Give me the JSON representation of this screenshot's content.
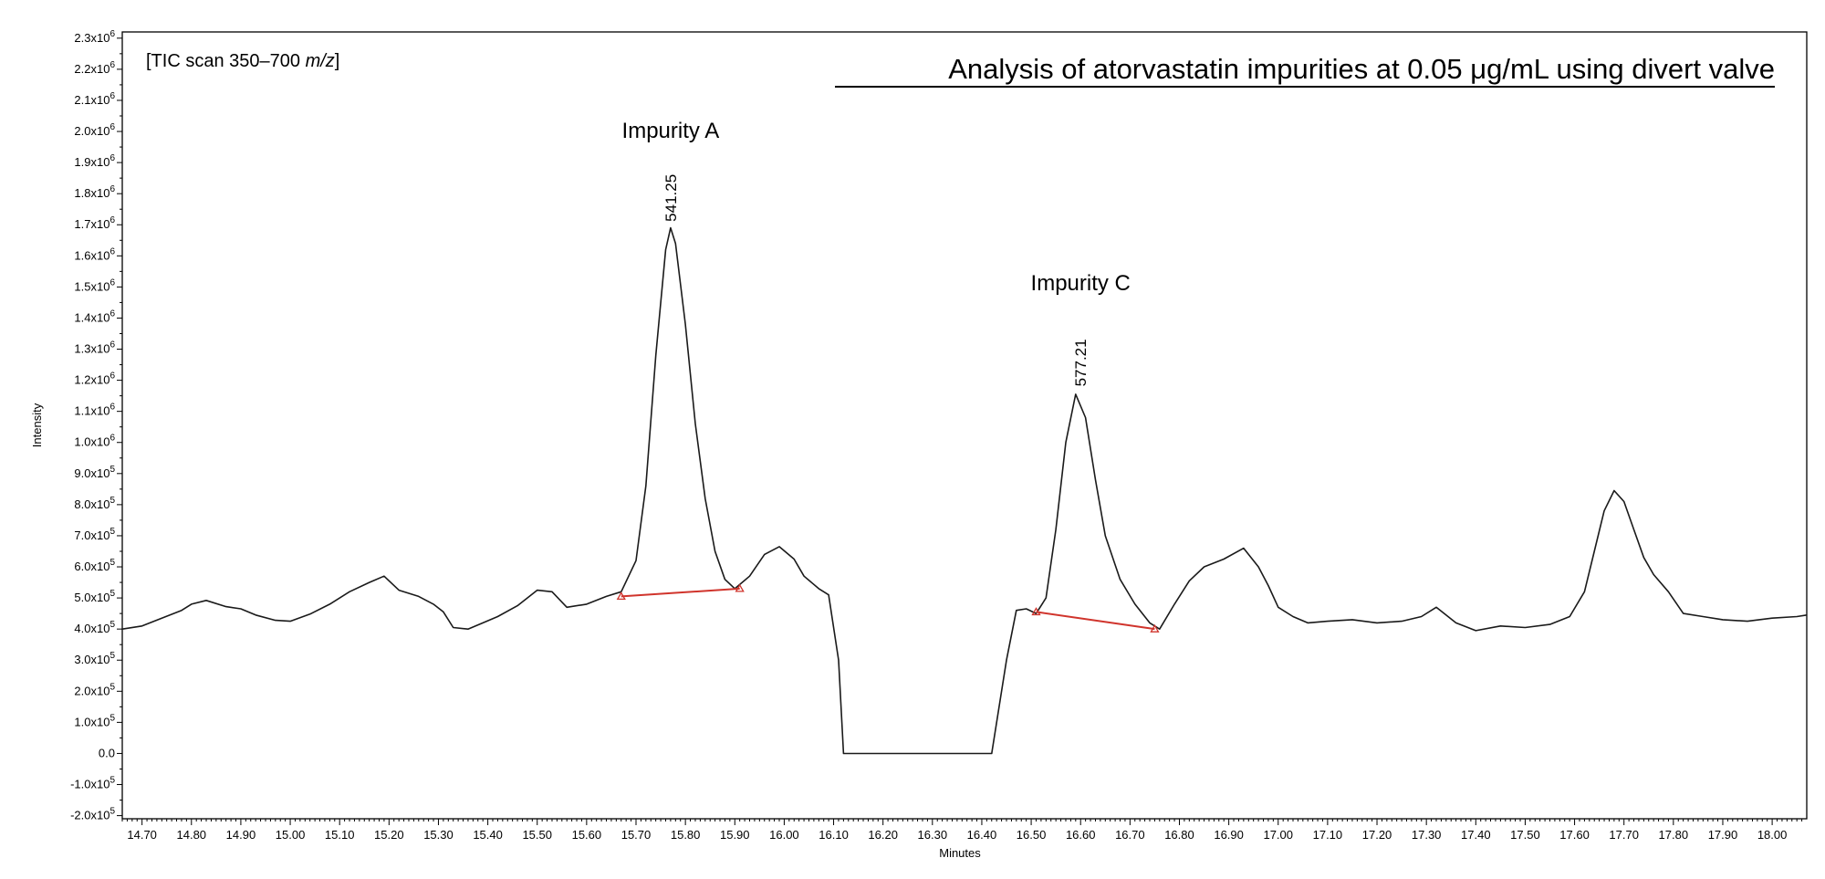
{
  "chart_data": {
    "type": "line",
    "title": "Analysis of atorvastatin impurities at 0.05 μg/mL using divert valve",
    "scan_label": "[TIC scan 350–700 ",
    "scan_label_italic": "m/z",
    "scan_label_end": "]",
    "xlabel": "Minutes",
    "ylabel": "Intensity",
    "xlim": [
      14.66,
      18.07
    ],
    "ylim": [
      -210000,
      2320000
    ],
    "x_ticks": [
      14.7,
      14.8,
      14.9,
      15.0,
      15.1,
      15.2,
      15.3,
      15.4,
      15.5,
      15.6,
      15.7,
      15.8,
      15.9,
      16.0,
      16.1,
      16.2,
      16.3,
      16.4,
      16.5,
      16.6,
      16.7,
      16.8,
      16.9,
      17.0,
      17.1,
      17.2,
      17.3,
      17.4,
      17.5,
      17.6,
      17.7,
      17.8,
      17.9,
      18.0
    ],
    "x_tick_labels": [
      "14.70",
      "14.80",
      "14.90",
      "15.00",
      "15.10",
      "15.20",
      "15.30",
      "15.40",
      "15.50",
      "15.60",
      "15.70",
      "15.80",
      "15.90",
      "16.00",
      "16.10",
      "16.20",
      "16.30",
      "16.40",
      "16.50",
      "16.60",
      "16.70",
      "16.80",
      "16.90",
      "17.00",
      "17.10",
      "17.20",
      "17.30",
      "17.40",
      "17.50",
      "17.60",
      "17.70",
      "17.80",
      "17.90",
      "18.00"
    ],
    "y_ticks": [
      {
        "value": 2300000,
        "mant": "2.3x10",
        "exp": "6"
      },
      {
        "value": 2200000,
        "mant": "2.2x10",
        "exp": "6"
      },
      {
        "value": 2100000,
        "mant": "2.1x10",
        "exp": "6"
      },
      {
        "value": 2000000,
        "mant": "2.0x10",
        "exp": "6"
      },
      {
        "value": 1900000,
        "mant": "1.9x10",
        "exp": "6"
      },
      {
        "value": 1800000,
        "mant": "1.8x10",
        "exp": "6"
      },
      {
        "value": 1700000,
        "mant": "1.7x10",
        "exp": "6"
      },
      {
        "value": 1600000,
        "mant": "1.6x10",
        "exp": "6"
      },
      {
        "value": 1500000,
        "mant": "1.5x10",
        "exp": "6"
      },
      {
        "value": 1400000,
        "mant": "1.4x10",
        "exp": "6"
      },
      {
        "value": 1300000,
        "mant": "1.3x10",
        "exp": "6"
      },
      {
        "value": 1200000,
        "mant": "1.2x10",
        "exp": "6"
      },
      {
        "value": 1100000,
        "mant": "1.1x10",
        "exp": "6"
      },
      {
        "value": 1000000,
        "mant": "1.0x10",
        "exp": "6"
      },
      {
        "value": 900000,
        "mant": "9.0x10",
        "exp": "5"
      },
      {
        "value": 800000,
        "mant": "8.0x10",
        "exp": "5"
      },
      {
        "value": 700000,
        "mant": "7.0x10",
        "exp": "5"
      },
      {
        "value": 600000,
        "mant": "6.0x10",
        "exp": "5"
      },
      {
        "value": 500000,
        "mant": "5.0x10",
        "exp": "5"
      },
      {
        "value": 400000,
        "mant": "4.0x10",
        "exp": "5"
      },
      {
        "value": 300000,
        "mant": "3.0x10",
        "exp": "5"
      },
      {
        "value": 200000,
        "mant": "2.0x10",
        "exp": "5"
      },
      {
        "value": 100000,
        "mant": "1.0x10",
        "exp": "5"
      },
      {
        "value": 0,
        "mant": "0.0",
        "exp": ""
      },
      {
        "value": -100000,
        "mant": "-1.0x10",
        "exp": "5"
      },
      {
        "value": -200000,
        "mant": "-2.0x10",
        "exp": "5"
      }
    ],
    "series": [
      {
        "color": "#1a1a1a",
        "x": [
          14.66,
          14.7,
          14.74,
          14.78,
          14.8,
          14.83,
          14.87,
          14.9,
          14.93,
          14.97,
          15.0,
          15.04,
          15.08,
          15.12,
          15.16,
          15.19,
          15.22,
          15.26,
          15.29,
          15.31,
          15.33,
          15.36,
          15.39,
          15.42,
          15.46,
          15.5,
          15.53,
          15.56,
          15.6,
          15.64,
          15.67,
          15.7,
          15.72,
          15.74,
          15.76,
          15.77,
          15.78,
          15.8,
          15.82,
          15.84,
          15.86,
          15.88,
          15.9,
          15.93,
          15.96,
          15.99,
          16.02,
          16.04,
          16.07,
          16.09,
          16.11,
          16.12,
          16.42,
          16.45,
          16.47,
          16.49,
          16.51,
          16.53,
          16.55,
          16.57,
          16.59,
          16.61,
          16.63,
          16.65,
          16.68,
          16.71,
          16.74,
          16.76,
          16.79,
          16.82,
          16.85,
          16.89,
          16.93,
          16.96,
          16.98,
          17.0,
          17.03,
          17.06,
          17.1,
          17.15,
          17.2,
          17.25,
          17.29,
          17.32,
          17.36,
          17.4,
          17.45,
          17.5,
          17.55,
          17.59,
          17.62,
          17.64,
          17.66,
          17.68,
          17.7,
          17.72,
          17.74,
          17.76,
          17.79,
          17.82,
          17.86,
          17.9,
          17.95,
          18.0,
          18.05,
          18.07
        ],
        "values": [
          400000,
          410000,
          435000,
          460000,
          480000,
          492000,
          472000,
          465000,
          445000,
          428000,
          425000,
          448000,
          480000,
          520000,
          550000,
          570000,
          525000,
          505000,
          480000,
          455000,
          405000,
          400000,
          420000,
          440000,
          475000,
          525000,
          520000,
          470000,
          480000,
          505000,
          520000,
          620000,
          860000,
          1280000,
          1620000,
          1690000,
          1640000,
          1380000,
          1060000,
          820000,
          650000,
          560000,
          530000,
          570000,
          640000,
          665000,
          625000,
          570000,
          530000,
          510000,
          300000,
          0,
          0,
          300000,
          460000,
          465000,
          450000,
          500000,
          720000,
          1000000,
          1155000,
          1080000,
          880000,
          700000,
          560000,
          480000,
          420000,
          400000,
          480000,
          555000,
          600000,
          625000,
          660000,
          600000,
          540000,
          470000,
          440000,
          420000,
          425000,
          430000,
          420000,
          425000,
          440000,
          470000,
          420000,
          395000,
          410000,
          405000,
          415000,
          440000,
          520000,
          650000,
          780000,
          845000,
          810000,
          720000,
          630000,
          575000,
          520000,
          450000,
          440000,
          430000,
          425000,
          435000,
          440000,
          445000
        ]
      }
    ],
    "baselines": [
      {
        "color": "#d0342c",
        "x": [
          15.67,
          15.91
        ],
        "values": [
          505000,
          530000
        ]
      },
      {
        "color": "#d0342c",
        "x": [
          16.51,
          16.75
        ],
        "values": [
          455000,
          400000
        ]
      }
    ],
    "annotations": [
      {
        "text": "Impurity A",
        "x": 15.77,
        "y": 1980000
      },
      {
        "text": "Impurity C",
        "x": 16.6,
        "y": 1490000
      }
    ],
    "peak_labels": [
      {
        "text": "541.25",
        "x": 15.77,
        "y": 1710000
      },
      {
        "text": "577.21",
        "x": 16.6,
        "y": 1180000
      }
    ]
  }
}
